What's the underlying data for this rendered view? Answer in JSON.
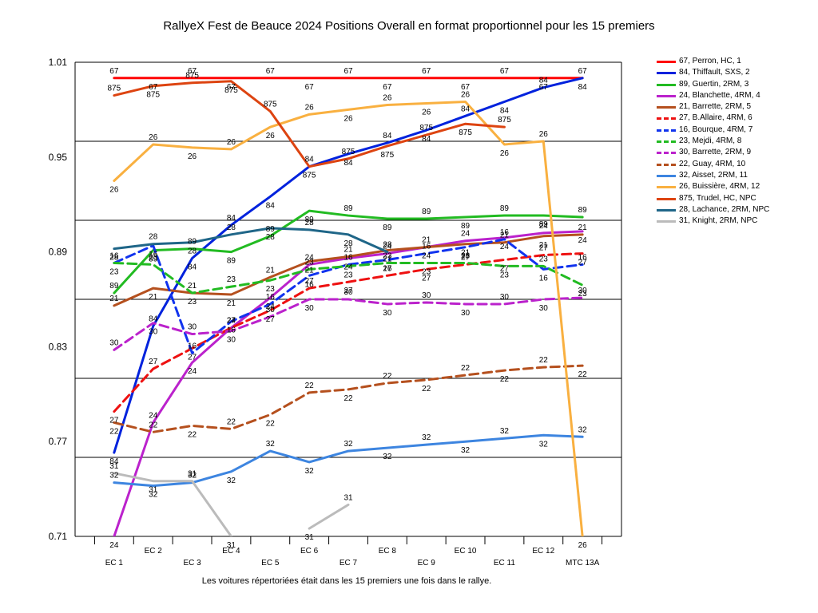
{
  "chart_data": {
    "type": "line",
    "title": "RallyeX Fest de Beauce 2024  Positions Overall en format proportionnel pour les 15 premiers",
    "footnote": "Les voitures répertoriées était dans les 15 premiers une fois dans le rallye.",
    "xlabel": "",
    "ylabel": "",
    "categories": [
      "EC 1",
      "EC 2",
      "EC 3",
      "EC 4",
      "EC 5",
      "EC 6",
      "EC 7",
      "EC 8",
      "EC 9",
      "EC 10",
      "EC 11",
      "EC 12",
      "MTC 13A"
    ],
    "ylim": [
      0.71,
      1.01
    ],
    "yticks": [
      "0.71",
      "0.77",
      "0.83",
      "0.89",
      "0.95",
      "1.01"
    ],
    "grid": true,
    "legend_position": "right",
    "series": [
      {
        "name": "67, Perron, HC, 1",
        "label": "67",
        "color": "#ff0000",
        "dash": false,
        "values": [
          1.0,
          1.0,
          1.0,
          1.0,
          1.0,
          1.0,
          1.0,
          1.0,
          1.0,
          1.0,
          1.0,
          1.0,
          1.0
        ]
      },
      {
        "name": "84, Thiffault, SXS, 2",
        "label": "84",
        "color": "#0022dd",
        "dash": false,
        "values": [
          0.763,
          0.843,
          0.886,
          0.907,
          0.925,
          0.944,
          0.952,
          0.959,
          0.967,
          0.976,
          0.985,
          0.994,
          1.0
        ]
      },
      {
        "name": "89, Guertin, 2RM, 3",
        "label": "89",
        "color": "#22bb22",
        "dash": false,
        "values": [
          0.864,
          0.891,
          0.892,
          0.89,
          0.9,
          0.916,
          0.913,
          0.911,
          0.911,
          0.912,
          0.913,
          0.913,
          0.912
        ]
      },
      {
        "name": "24, Blanchette, 4RM, 4",
        "label": "24",
        "color": "#bb22cc",
        "dash": false,
        "values": [
          0.71,
          0.782,
          0.82,
          0.842,
          0.861,
          0.882,
          0.886,
          0.889,
          0.893,
          0.897,
          0.899,
          0.902,
          0.903
        ]
      },
      {
        "name": "21, Barrette, 2RM, 5",
        "label": "21",
        "color": "#b5501e",
        "dash": false,
        "values": [
          0.856,
          0.867,
          0.864,
          0.863,
          0.874,
          0.884,
          0.887,
          0.891,
          0.893,
          0.895,
          0.896,
          0.9,
          0.901
        ]
      },
      {
        "name": "27, B.Allaire, 4RM, 6",
        "label": "27",
        "color": "#ee1111",
        "dash": true,
        "values": [
          0.789,
          0.816,
          0.829,
          0.842,
          0.853,
          0.867,
          0.871,
          0.875,
          0.879,
          0.882,
          0.885,
          0.888,
          0.889
        ]
      },
      {
        "name": "16, Bourque, 4RM, 7",
        "label": "16",
        "color": "#1133ee",
        "dash": true,
        "values": [
          0.883,
          0.894,
          0.826,
          0.846,
          0.857,
          0.875,
          0.882,
          0.885,
          0.889,
          0.893,
          0.898,
          0.879,
          0.882
        ]
      },
      {
        "name": "23, Mejdi, 4RM, 8",
        "label": "23",
        "color": "#22bb22",
        "dash": true,
        "values": [
          0.883,
          0.882,
          0.864,
          0.868,
          0.872,
          0.879,
          0.881,
          0.883,
          0.883,
          0.883,
          0.881,
          0.881,
          0.869
        ]
      },
      {
        "name": "30, Barrette, 2RM, 9",
        "label": "30",
        "color": "#bb22cc",
        "dash": true,
        "values": [
          0.828,
          0.845,
          0.838,
          0.84,
          0.849,
          0.86,
          0.86,
          0.857,
          0.858,
          0.857,
          0.857,
          0.86,
          0.861
        ]
      },
      {
        "name": "22, Guay, 4RM, 10",
        "label": "22",
        "color": "#b5501e",
        "dash": true,
        "values": [
          0.782,
          0.776,
          0.78,
          0.778,
          0.787,
          0.801,
          0.803,
          0.807,
          0.809,
          0.812,
          0.815,
          0.817,
          0.818
        ]
      },
      {
        "name": "32, Aisset, 2RM, 11",
        "label": "32",
        "color": "#3d85e0",
        "dash": false,
        "values": [
          0.744,
          0.742,
          0.744,
          0.751,
          0.764,
          0.757,
          0.764,
          0.766,
          0.768,
          0.77,
          0.772,
          0.774,
          0.773
        ]
      },
      {
        "name": "26, Buissière, 4RM, 12",
        "label": "26",
        "color": "#f9b040",
        "dash": false,
        "values": [
          0.935,
          0.958,
          0.956,
          0.955,
          0.969,
          0.977,
          0.98,
          0.983,
          0.984,
          0.985,
          0.958,
          0.96,
          0.71
        ]
      },
      {
        "name": "875, Trudel, HC,  NPC",
        "label": "875",
        "color": "#dd4411",
        "dash": false,
        "values": [
          0.989,
          0.995,
          0.997,
          0.998,
          0.979,
          0.944,
          0.949,
          0.957,
          0.964,
          0.971,
          0.969,
          null,
          null
        ]
      },
      {
        "name": "28, Lachance, 2RM,  NPC",
        "label": "28",
        "color": "#1f6688",
        "dash": false,
        "values": [
          0.892,
          0.895,
          0.896,
          0.901,
          0.905,
          0.904,
          0.901,
          0.89,
          null,
          null,
          null,
          null,
          null
        ]
      },
      {
        "name": "31, Knight, 2RM,  NPC",
        "label": "31",
        "color": "#bbbbbb",
        "dash": false,
        "values": [
          0.75,
          0.745,
          0.745,
          0.71,
          null,
          0.715,
          0.73,
          null,
          null,
          null,
          null,
          null,
          null
        ]
      }
    ]
  }
}
